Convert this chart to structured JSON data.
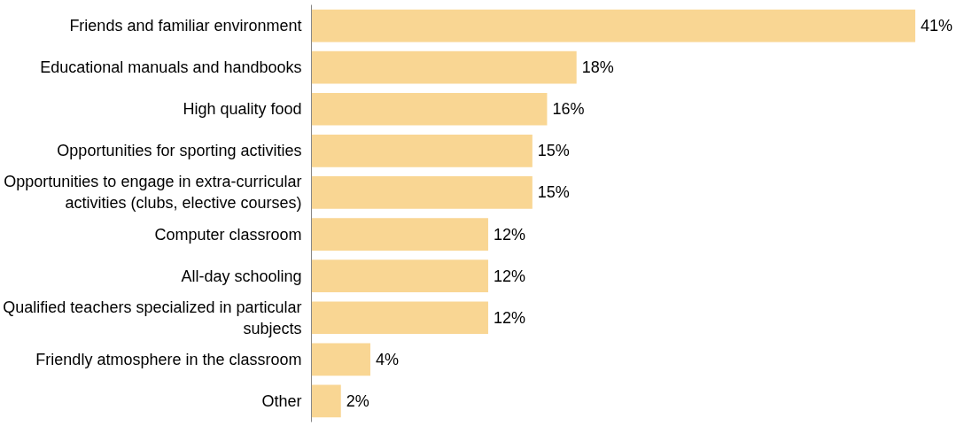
{
  "chart_data": {
    "type": "bar",
    "orientation": "horizontal",
    "tick_labels": "y",
    "grid": false,
    "categories": [
      "Friends and familiar environment",
      "Educational manuals and handbooks",
      "High quality food",
      "Opportunities for sporting activities",
      "Opportunities to engage in extra-curricular\nactivities (clubs, elective courses)",
      "Computer classroom",
      "All-day schooling",
      "Qualified teachers specialized in particular\nsubjects",
      "Friendly atmosphere in the classroom",
      "Other"
    ],
    "values": [
      41,
      18,
      16,
      15,
      15,
      12,
      12,
      12,
      4,
      2
    ],
    "value_labels": [
      "41%",
      "18%",
      "16%",
      "15%",
      "15%",
      "12%",
      "12%",
      "12%",
      "4%",
      "2%"
    ],
    "color": "#f9d693"
  }
}
